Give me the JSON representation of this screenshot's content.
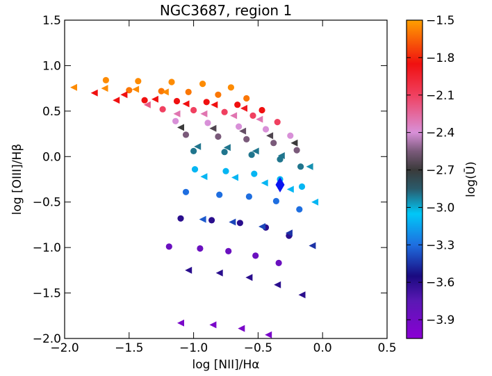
{
  "chart_data": {
    "type": "scatter",
    "title": "NGC3687, region 1",
    "xlabel": "log [NII]/Hα",
    "ylabel": "log [OIII]/Hβ",
    "colorbar_label": "log(Ū)",
    "xlim": [
      -2.0,
      0.5
    ],
    "ylim": [
      -2.0,
      1.5
    ],
    "xticks": [
      "−2.0",
      "−1.5",
      "−1.0",
      "−0.5",
      "0.0",
      "0.5"
    ],
    "xtick_values": [
      -2.0,
      -1.5,
      -1.0,
      -0.5,
      0.0,
      0.5
    ],
    "yticks": [
      "−2.0",
      "−1.5",
      "−1.0",
      "−0.5",
      "0.0",
      "0.5",
      "1.0",
      "1.5"
    ],
    "ytick_values": [
      -2.0,
      -1.5,
      -1.0,
      -0.5,
      0.0,
      0.5,
      1.0,
      1.5
    ],
    "colorbar_range": [
      -4.05,
      -1.5
    ],
    "colorbar_ticks": [
      "−1.5",
      "−1.8",
      "−2.1",
      "−2.4",
      "−2.7",
      "−3.0",
      "−3.3",
      "−3.6",
      "−3.9"
    ],
    "colorbar_tick_values": [
      -1.5,
      -1.8,
      -2.1,
      -2.4,
      -2.7,
      -3.0,
      -3.3,
      -3.6,
      -3.9
    ],
    "grid": false,
    "colormap_stops": [
      {
        "v": -4.05,
        "c": "#8a00d4"
      },
      {
        "v": -3.75,
        "c": "#5a18b4"
      },
      {
        "v": -3.55,
        "c": "#1a0a80"
      },
      {
        "v": -3.3,
        "c": "#1e6ee0"
      },
      {
        "v": -3.05,
        "c": "#00c8f8"
      },
      {
        "v": -2.85,
        "c": "#2a5a6a"
      },
      {
        "v": -2.7,
        "c": "#3a3a3a"
      },
      {
        "v": -2.55,
        "c": "#7a5a7a"
      },
      {
        "v": -2.4,
        "c": "#d890d8"
      },
      {
        "v": -2.1,
        "c": "#f04060"
      },
      {
        "v": -1.85,
        "c": "#f01010"
      },
      {
        "v": -1.5,
        "c": "#ffa000"
      }
    ],
    "series": [
      {
        "marker": "circle",
        "points": [
          {
            "x": -1.68,
            "y": 0.84,
            "u": -1.55
          },
          {
            "x": -1.43,
            "y": 0.83,
            "u": -1.55
          },
          {
            "x": -1.5,
            "y": 0.73,
            "u": -1.6
          },
          {
            "x": -1.25,
            "y": 0.72,
            "u": -1.6
          },
          {
            "x": -1.17,
            "y": 0.82,
            "u": -1.55
          },
          {
            "x": -1.04,
            "y": 0.71,
            "u": -1.6
          },
          {
            "x": -0.93,
            "y": 0.8,
            "u": -1.55
          },
          {
            "x": -0.71,
            "y": 0.76,
            "u": -1.55
          },
          {
            "x": -0.81,
            "y": 0.68,
            "u": -1.6
          },
          {
            "x": -0.59,
            "y": 0.64,
            "u": -1.6
          },
          {
            "x": -1.38,
            "y": 0.62,
            "u": -1.85
          },
          {
            "x": -1.13,
            "y": 0.61,
            "u": -1.85
          },
          {
            "x": -0.9,
            "y": 0.6,
            "u": -1.85
          },
          {
            "x": -0.66,
            "y": 0.57,
            "u": -1.85
          },
          {
            "x": -0.47,
            "y": 0.51,
            "u": -1.85
          },
          {
            "x": -1.24,
            "y": 0.52,
            "u": -2.1
          },
          {
            "x": -1.0,
            "y": 0.51,
            "u": -2.1
          },
          {
            "x": -0.76,
            "y": 0.49,
            "u": -2.1
          },
          {
            "x": -0.54,
            "y": 0.45,
            "u": -2.1
          },
          {
            "x": -0.35,
            "y": 0.38,
            "u": -2.1
          },
          {
            "x": -1.14,
            "y": 0.39,
            "u": -2.4
          },
          {
            "x": -0.89,
            "y": 0.37,
            "u": -2.4
          },
          {
            "x": -0.65,
            "y": 0.33,
            "u": -2.4
          },
          {
            "x": -0.44,
            "y": 0.3,
            "u": -2.4
          },
          {
            "x": -0.25,
            "y": 0.23,
            "u": -2.4
          },
          {
            "x": -1.06,
            "y": 0.24,
            "u": -2.55
          },
          {
            "x": -0.81,
            "y": 0.22,
            "u": -2.55
          },
          {
            "x": -0.59,
            "y": 0.19,
            "u": -2.55
          },
          {
            "x": -0.38,
            "y": 0.15,
            "u": -2.55
          },
          {
            "x": -0.2,
            "y": 0.07,
            "u": -2.55
          },
          {
            "x": -1.0,
            "y": 0.06,
            "u": -2.9
          },
          {
            "x": -0.76,
            "y": 0.05,
            "u": -2.9
          },
          {
            "x": -0.55,
            "y": 0.02,
            "u": -2.9
          },
          {
            "x": -0.33,
            "y": -0.03,
            "u": -2.9
          },
          {
            "x": -0.17,
            "y": -0.11,
            "u": -2.9
          },
          {
            "x": -0.99,
            "y": -0.14,
            "u": -3.1
          },
          {
            "x": -0.75,
            "y": -0.16,
            "u": -3.1
          },
          {
            "x": -0.53,
            "y": -0.19,
            "u": -3.1
          },
          {
            "x": -0.33,
            "y": -0.25,
            "u": -3.1
          },
          {
            "x": -0.16,
            "y": -0.33,
            "u": -3.1
          },
          {
            "x": -1.06,
            "y": -0.39,
            "u": -3.3
          },
          {
            "x": -0.8,
            "y": -0.42,
            "u": -3.3
          },
          {
            "x": -0.57,
            "y": -0.44,
            "u": -3.3
          },
          {
            "x": -0.36,
            "y": -0.49,
            "u": -3.3
          },
          {
            "x": -0.18,
            "y": -0.58,
            "u": -3.3
          },
          {
            "x": -1.1,
            "y": -0.68,
            "u": -3.6
          },
          {
            "x": -0.86,
            "y": -0.7,
            "u": -3.6
          },
          {
            "x": -0.64,
            "y": -0.73,
            "u": -3.6
          },
          {
            "x": -0.44,
            "y": -0.78,
            "u": -3.6
          },
          {
            "x": -0.26,
            "y": -0.87,
            "u": -3.6
          },
          {
            "x": -1.19,
            "y": -0.99,
            "u": -3.85
          },
          {
            "x": -0.95,
            "y": -1.01,
            "u": -3.85
          },
          {
            "x": -0.73,
            "y": -1.04,
            "u": -3.85
          },
          {
            "x": -0.52,
            "y": -1.09,
            "u": -3.85
          },
          {
            "x": -0.34,
            "y": -1.17,
            "u": -3.85
          }
        ]
      },
      {
        "marker": "triangle-left",
        "points": [
          {
            "x": -1.93,
            "y": 0.76,
            "u": -1.55
          },
          {
            "x": -1.69,
            "y": 0.75,
            "u": -1.55
          },
          {
            "x": -1.45,
            "y": 0.74,
            "u": -1.55
          },
          {
            "x": -1.22,
            "y": 0.71,
            "u": -1.55
          },
          {
            "x": -1.77,
            "y": 0.7,
            "u": -1.85
          },
          {
            "x": -1.54,
            "y": 0.68,
            "u": -1.85
          },
          {
            "x": -1.3,
            "y": 0.63,
            "u": -1.85
          },
          {
            "x": -1.6,
            "y": 0.62,
            "u": -1.85
          },
          {
            "x": -1.36,
            "y": 0.57,
            "u": -2.2
          },
          {
            "x": -1.06,
            "y": 0.58,
            "u": -1.85
          },
          {
            "x": -0.84,
            "y": 0.57,
            "u": -1.85
          },
          {
            "x": -0.61,
            "y": 0.53,
            "u": -1.9
          },
          {
            "x": -1.13,
            "y": 0.47,
            "u": -2.3
          },
          {
            "x": -0.92,
            "y": 0.47,
            "u": -2.3
          },
          {
            "x": -0.69,
            "y": 0.45,
            "u": -2.3
          },
          {
            "x": -0.49,
            "y": 0.41,
            "u": -2.3
          },
          {
            "x": -1.1,
            "y": 0.32,
            "u": -2.7
          },
          {
            "x": -0.85,
            "y": 0.31,
            "u": -2.65
          },
          {
            "x": -0.62,
            "y": 0.28,
            "u": -2.6
          },
          {
            "x": -0.41,
            "y": 0.23,
            "u": -2.65
          },
          {
            "x": -0.22,
            "y": 0.15,
            "u": -2.7
          },
          {
            "x": -0.97,
            "y": 0.11,
            "u": -2.9
          },
          {
            "x": -0.74,
            "y": 0.1,
            "u": -2.9
          },
          {
            "x": -0.52,
            "y": 0.06,
            "u": -2.9
          },
          {
            "x": -0.32,
            "y": 0.01,
            "u": -2.9
          },
          {
            "x": -0.1,
            "y": -0.11,
            "u": -2.95
          },
          {
            "x": -0.92,
            "y": -0.22,
            "u": -3.1
          },
          {
            "x": -0.68,
            "y": -0.23,
            "u": -3.1
          },
          {
            "x": -0.45,
            "y": -0.29,
            "u": -3.1
          },
          {
            "x": -0.25,
            "y": -0.36,
            "u": -3.1
          },
          {
            "x": -0.06,
            "y": -0.5,
            "u": -3.1
          },
          {
            "x": -0.93,
            "y": -0.69,
            "u": -3.35
          },
          {
            "x": -0.7,
            "y": -0.72,
            "u": -3.4
          },
          {
            "x": -0.47,
            "y": -0.77,
            "u": -3.4
          },
          {
            "x": -0.26,
            "y": -0.84,
            "u": -3.45
          },
          {
            "x": -0.08,
            "y": -0.98,
            "u": -3.45
          },
          {
            "x": -1.04,
            "y": -1.25,
            "u": -3.6
          },
          {
            "x": -0.8,
            "y": -1.28,
            "u": -3.6
          },
          {
            "x": -0.57,
            "y": -1.33,
            "u": -3.6
          },
          {
            "x": -0.35,
            "y": -1.41,
            "u": -3.6
          },
          {
            "x": -0.16,
            "y": -1.52,
            "u": -3.6
          },
          {
            "x": -1.1,
            "y": -1.83,
            "u": -3.95
          },
          {
            "x": -0.85,
            "y": -1.85,
            "u": -3.95
          },
          {
            "x": -0.63,
            "y": -1.89,
            "u": -3.95
          },
          {
            "x": -0.42,
            "y": -1.96,
            "u": -3.95
          }
        ]
      },
      {
        "marker": "diamond",
        "points": [
          {
            "x": -0.33,
            "y": -0.31,
            "color": "#0a14f0"
          }
        ]
      }
    ]
  }
}
